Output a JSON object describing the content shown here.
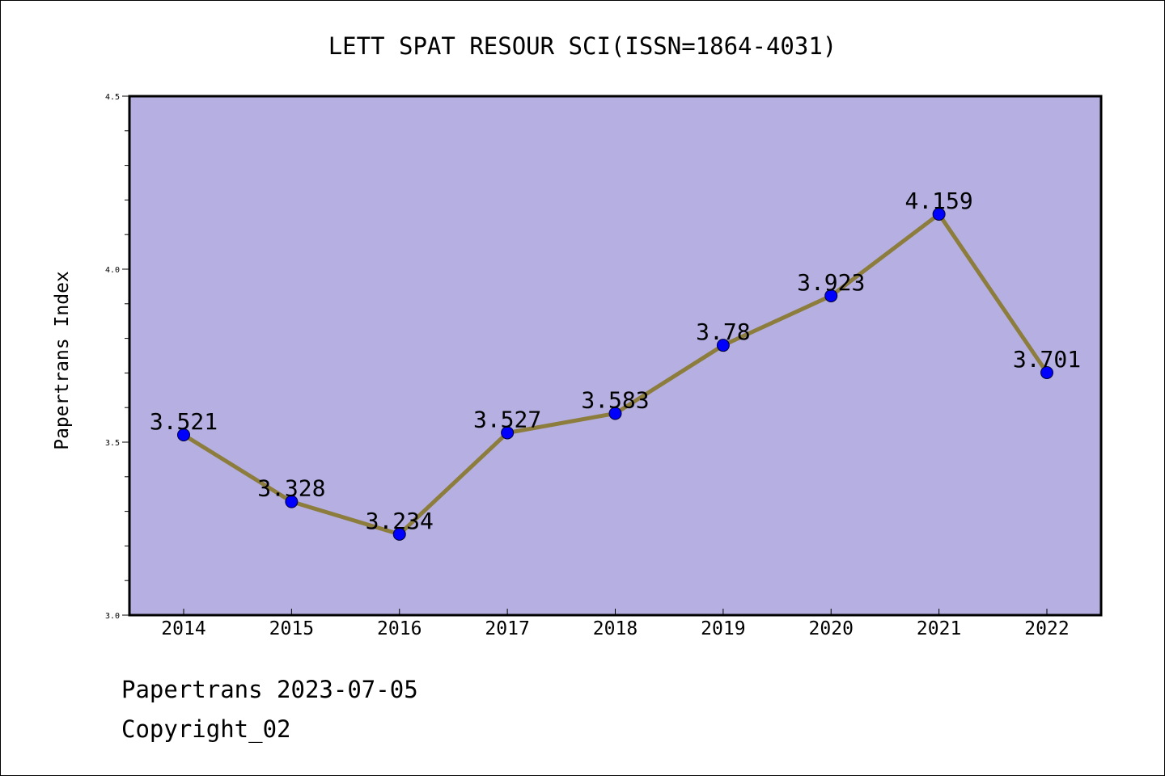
{
  "chart_data": {
    "type": "line",
    "title": "LETT SPAT RESOUR SCI(ISSN=1864-4031)",
    "xlabel": "",
    "ylabel": "Papertrans Index",
    "categories": [
      "2014",
      "2015",
      "2016",
      "2017",
      "2018",
      "2019",
      "2020",
      "2021",
      "2022"
    ],
    "series": [
      {
        "values": [
          3.521,
          3.328,
          3.234,
          3.527,
          3.583,
          3.78,
          3.923,
          4.159,
          3.701
        ],
        "labels": [
          "3.521",
          "3.328",
          "3.234",
          "3.527",
          "3.583",
          "3.78",
          "3.923",
          "4.159",
          "3.701"
        ]
      }
    ],
    "ylim": [
      3.0,
      4.5
    ],
    "y_ticks": [
      "3.0",
      "3.5",
      "4.0",
      "4.5"
    ],
    "y_minor_step": 0.1,
    "grid": false,
    "legend": "none",
    "colors": {
      "plot_background": "#b5afe2",
      "line": "#8c7d3c",
      "marker": "#0000ff",
      "text": "#000000"
    }
  },
  "footer": {
    "date_text": "Papertrans 2023-07-05",
    "copyright_text": "Copyright_02"
  }
}
